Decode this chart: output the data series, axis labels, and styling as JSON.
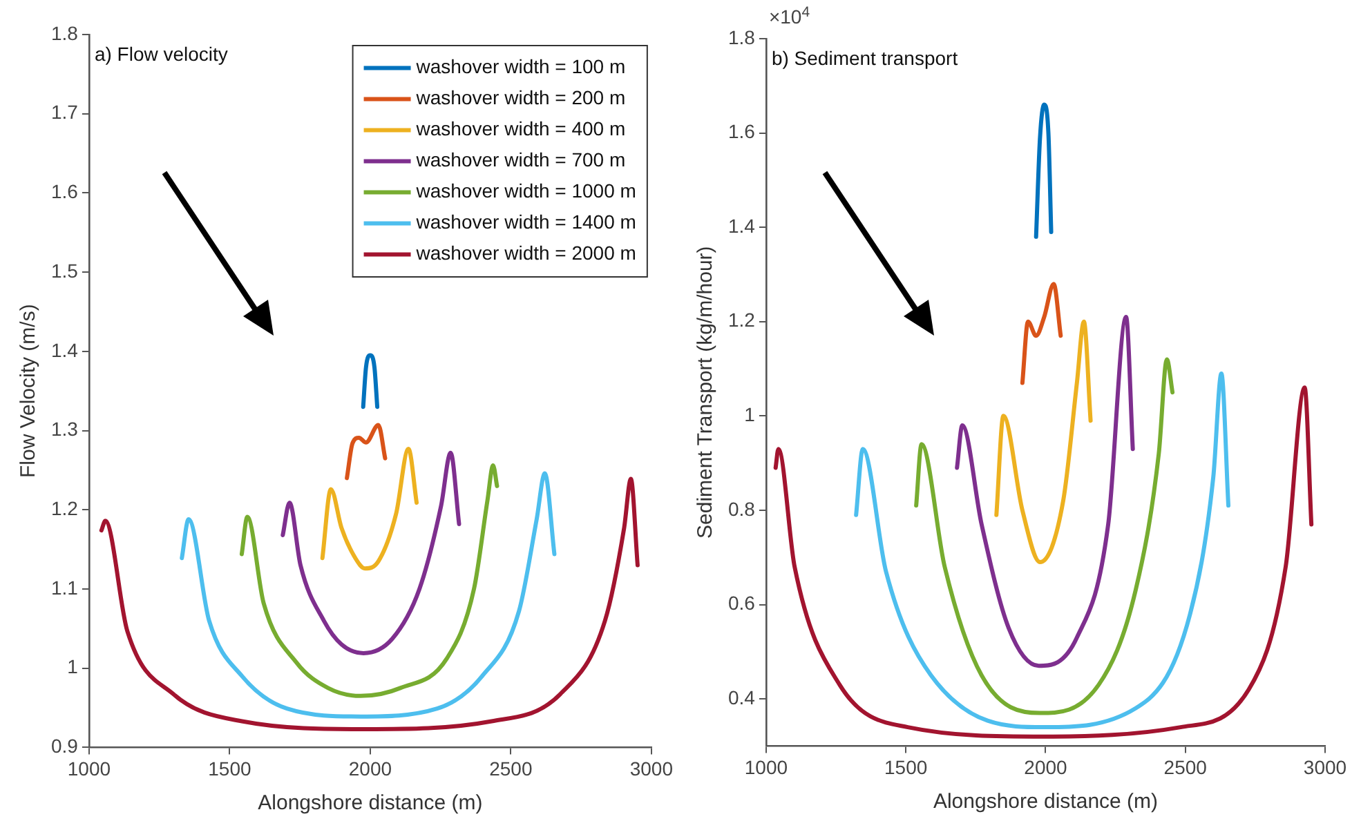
{
  "chart_data": [
    {
      "type": "line",
      "title": "a) Flow velocity",
      "xlabel": "Alongshore distance (m)",
      "ylabel": "Flow Velocity (m/s)",
      "xlim": [
        1000,
        3000
      ],
      "xticks": [
        1000,
        1500,
        2000,
        2500,
        3000
      ],
      "ylim": [
        0.9,
        1.8
      ],
      "yticks": [
        0.9,
        1,
        1.1,
        1.2,
        1.3,
        1.4,
        1.5,
        1.6,
        1.7,
        1.8
      ],
      "grid": false,
      "legend": "top right",
      "marker": "none",
      "line_style": "solid",
      "series": [
        {
          "name": "washover width = 100 m",
          "color": "#0072bd",
          "x": [
            1975,
            1985,
            2000,
            2015,
            2025
          ],
          "values": [
            1.33,
            1.38,
            1.395,
            1.38,
            1.33
          ]
        },
        {
          "name": "washover width = 200 m",
          "color": "#d95319",
          "x": [
            1917,
            1937,
            1960,
            1985,
            2029,
            2053
          ],
          "values": [
            1.24,
            1.284,
            1.291,
            1.285,
            1.307,
            1.265
          ]
        },
        {
          "name": "washover width = 400 m",
          "color": "#edb120",
          "x": [
            1830,
            1860,
            1898,
            1947,
            1981,
            2029,
            2092,
            2136,
            2165
          ],
          "values": [
            1.139,
            1.226,
            1.177,
            1.139,
            1.126,
            1.135,
            1.195,
            1.277,
            1.209
          ]
        },
        {
          "name": "washover width = 700 m",
          "color": "#7e2f8e",
          "x": [
            1689,
            1713,
            1752,
            1835,
            1898,
            1976,
            2078,
            2175,
            2252,
            2286,
            2316
          ],
          "values": [
            1.168,
            1.209,
            1.13,
            1.06,
            1.03,
            1.019,
            1.037,
            1.1,
            1.205,
            1.272,
            1.182
          ]
        },
        {
          "name": "washover width = 1000 m",
          "color": "#77ac30",
          "x": [
            1543,
            1563,
            1621,
            1738,
            1850,
            1966,
            2107,
            2272,
            2369,
            2417,
            2437,
            2451
          ],
          "values": [
            1.144,
            1.191,
            1.082,
            1.007,
            0.975,
            0.965,
            0.975,
            1.012,
            1.1,
            1.212,
            1.256,
            1.23
          ]
        },
        {
          "name": "washover width = 1400 m",
          "color": "#4dbeee",
          "x": [
            1330,
            1354,
            1427,
            1544,
            1704,
            1966,
            2238,
            2398,
            2529,
            2592,
            2621,
            2655
          ],
          "values": [
            1.139,
            1.188,
            1.06,
            0.99,
            0.949,
            0.939,
            0.949,
            0.99,
            1.072,
            1.188,
            1.246,
            1.144
          ]
        },
        {
          "name": "washover width = 2000 m",
          "color": "#a2142f",
          "x": [
            1044,
            1058,
            1136,
            1301,
            1544,
            1981,
            2432,
            2675,
            2835,
            2903,
            2927,
            2951
          ],
          "values": [
            1.174,
            1.186,
            1.047,
            0.967,
            0.933,
            0.923,
            0.933,
            0.967,
            1.06,
            1.177,
            1.239,
            1.13
          ]
        }
      ]
    },
    {
      "type": "line",
      "title": "b) Sediment transport",
      "xlabel": "Alongshore distance (m)",
      "ylabel": "Sediment Transport (kg/m/hour)",
      "annotations": [
        "×10$^{4}$"
      ],
      "xlim": [
        1000,
        3000
      ],
      "xticks": [
        1000,
        1500,
        2000,
        2500,
        3000
      ],
      "ylim": [
        0.3,
        1.8
      ],
      "yticks": [
        0.4,
        0.6,
        0.8,
        1,
        1.2,
        1.4,
        1.6,
        1.8
      ],
      "grid": false,
      "marker": "none",
      "line_style": "solid",
      "series": [
        {
          "color": "#0072bd",
          "x": [
            1966,
            1980,
            1995,
            2010,
            2020
          ],
          "values": [
            1.38,
            1.59,
            1.66,
            1.6,
            1.39
          ]
        },
        {
          "color": "#d95319",
          "x": [
            1917,
            1937,
            1966,
            1995,
            2029,
            2054
          ],
          "values": [
            1.07,
            1.2,
            1.17,
            1.21,
            1.28,
            1.17
          ]
        },
        {
          "color": "#edb120",
          "x": [
            1824,
            1849,
            1917,
            1980,
            2063,
            2112,
            2137,
            2161
          ],
          "values": [
            0.79,
            1.0,
            0.8,
            0.69,
            0.82,
            1.07,
            1.2,
            0.99
          ]
        },
        {
          "color": "#7e2f8e",
          "x": [
            1683,
            1702,
            1771,
            1868,
            1976,
            2112,
            2224,
            2288,
            2312
          ],
          "values": [
            0.89,
            0.98,
            0.77,
            0.55,
            0.47,
            0.53,
            0.77,
            1.21,
            0.93
          ]
        },
        {
          "color": "#77ac30",
          "x": [
            1537,
            1556,
            1639,
            1771,
            1980,
            2190,
            2322,
            2405,
            2434,
            2454
          ],
          "values": [
            0.81,
            0.94,
            0.68,
            0.45,
            0.37,
            0.43,
            0.63,
            0.92,
            1.12,
            1.05
          ]
        },
        {
          "color": "#4dbeee",
          "x": [
            1322,
            1346,
            1429,
            1590,
            1995,
            2322,
            2517,
            2600,
            2629,
            2654
          ],
          "values": [
            0.79,
            0.93,
            0.67,
            0.45,
            0.34,
            0.38,
            0.58,
            0.87,
            1.09,
            0.81
          ]
        },
        {
          "color": "#a2142f",
          "x": [
            1034,
            1044,
            1102,
            1263,
            1507,
            1995,
            2483,
            2727,
            2859,
            2927,
            2951
          ],
          "values": [
            0.89,
            0.93,
            0.68,
            0.43,
            0.34,
            0.32,
            0.34,
            0.42,
            0.68,
            1.06,
            0.77
          ]
        }
      ]
    }
  ]
}
